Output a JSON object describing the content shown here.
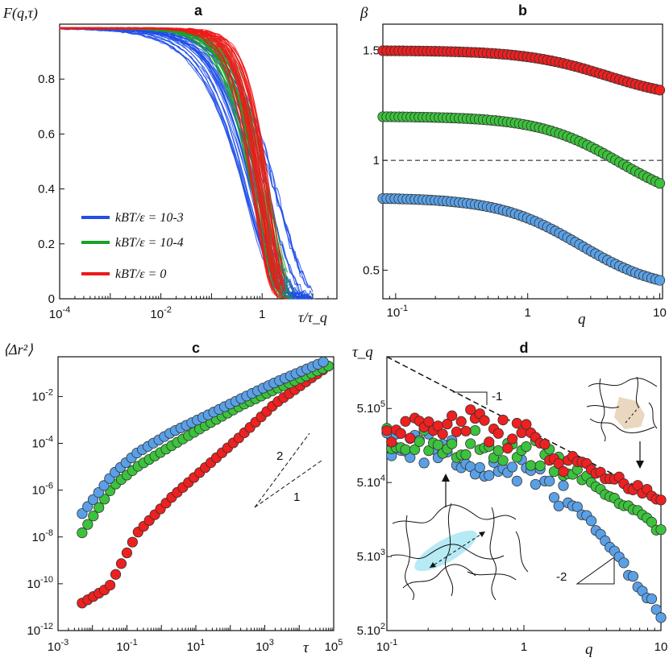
{
  "colors": {
    "blue": "#1f4fe8",
    "green": "#1aa12a",
    "red": "#ee1a1a",
    "blue_marker": "#5aa0e6",
    "green_marker": "#3cc23c",
    "red_marker": "#ee2020",
    "cell_blue": "#aee8f4",
    "cell_tan": "#ead7bf"
  },
  "chart_data": [
    {
      "panel": "a",
      "type": "line",
      "title": "a",
      "ylabel": "F(q,τ)",
      "xlabel": "τ/τ_q",
      "xscale": "log",
      "xlim": [
        0.0001,
        30
      ],
      "ylim": [
        0,
        1
      ],
      "x_tick_labels": [
        "10-4",
        "10-2",
        "1"
      ],
      "y_tick_labels": [
        "0",
        "0.2",
        "0.4",
        "0.6",
        "0.8"
      ],
      "legend_placement": "lower-left",
      "legend": [
        "kBT/ε = 10-3",
        "kBT/ε = 10-4",
        "kBT/ε = 0"
      ],
      "series": [
        {
          "name": "kBT/ε = 10-3",
          "model": "stretched exponential bundle",
          "beta": 0.83,
          "curves": 30,
          "x_end": 10
        },
        {
          "name": "kBT/ε = 10-4",
          "model": "stretched exponential bundle",
          "beta": 1.2,
          "curves": 30,
          "x_end": 4
        },
        {
          "name": "kBT/ε = 0",
          "model": "stretched exponential bundle",
          "beta": 1.5,
          "curves": 30,
          "x_end": 3
        }
      ]
    },
    {
      "panel": "b",
      "type": "scatter",
      "title": "b",
      "ylabel": "β",
      "xlabel": "q",
      "xscale": "log",
      "xlim": [
        0.08,
        10.5
      ],
      "ylim": [
        0.37,
        1.62
      ],
      "x_tick_labels": [
        "10-1",
        "1",
        "10"
      ],
      "y_tick_labels": [
        "0.5",
        "1",
        "1.5"
      ],
      "reference_line": {
        "y": 1,
        "style": "dashed"
      },
      "series": [
        {
          "name": "kBT/ε = 0",
          "plateau": 1.5,
          "low": 1.27,
          "midpoint_q": 4.0
        },
        {
          "name": "kBT/ε = 10-4",
          "plateau": 1.2,
          "low": 0.78,
          "midpoint_q": 5.0
        },
        {
          "name": "kBT/ε = 10-3",
          "plateau": 0.83,
          "low": 0.4,
          "midpoint_q": 2.5
        }
      ]
    },
    {
      "panel": "c",
      "type": "scatter",
      "title": "c",
      "ylabel": "⟨Δr²⟩",
      "xlabel": "τ",
      "xscale": "log",
      "yscale": "log",
      "xlim": [
        0.001,
        100000
      ],
      "ylim": [
        1e-12,
        0.5
      ],
      "x_tick_labels": [
        "10-3",
        "10-1",
        "101",
        "103",
        "105"
      ],
      "y_tick_labels": [
        "10-12",
        "10-10",
        "10-8",
        "10-6",
        "10-4",
        "10-2"
      ],
      "slope_labels": [
        "2",
        "1"
      ],
      "series": [
        {
          "name": "kBT/ε = 10-3",
          "x": [
            0.005,
            0.04,
            0.2,
            2,
            20,
            200,
            2000,
            50000
          ],
          "y": [
            1e-07,
            5e-06,
            4e-05,
            0.0003,
            0.0015,
            0.008,
            0.04,
            0.3
          ]
        },
        {
          "name": "kBT/ε = 10-4",
          "x": [
            0.005,
            0.04,
            0.2,
            2,
            20,
            200,
            2000,
            70000
          ],
          "y": [
            1.5e-08,
            1.5e-06,
            1e-05,
            8e-05,
            0.0006,
            0.004,
            0.02,
            0.2
          ]
        },
        {
          "name": "kBT/ε = 0",
          "x": [
            0.005,
            0.03,
            0.2,
            2,
            20,
            200,
            2000,
            70000
          ],
          "y": [
            1.5e-11,
            7e-11,
            1.5e-08,
            5e-07,
            1e-05,
            0.0002,
            0.005,
            0.2
          ]
        }
      ]
    },
    {
      "panel": "d",
      "type": "scatter",
      "title": "d",
      "ylabel": "τ_q",
      "xlabel": "q",
      "xscale": "log",
      "yscale": "log",
      "xlim": [
        0.1,
        10
      ],
      "ylim": [
        500,
        2500000
      ],
      "x_tick_labels": [
        "10-1",
        "1",
        "10"
      ],
      "y_tick_labels": [
        "5.102",
        "5.103",
        "5.104",
        "5.105"
      ],
      "slope_labels": [
        "-1",
        "-2"
      ],
      "reference_line": {
        "slope": -1,
        "style": "dashed"
      },
      "series": [
        {
          "name": "kBT/ε = 0",
          "x": [
            0.1,
            0.3,
            1,
            3,
            10
          ],
          "y": [
            260000,
            400000,
            200000,
            80000,
            30000
          ]
        },
        {
          "name": "kBT/ε = 10-4",
          "x": [
            0.1,
            0.3,
            1,
            3,
            10
          ],
          "y": [
            240000,
            180000,
            140000,
            55000,
            11000
          ]
        },
        {
          "name": "kBT/ε = 10-3",
          "x": [
            0.1,
            0.3,
            1,
            3,
            10
          ],
          "y": [
            180000,
            120000,
            70000,
            17000,
            800
          ]
        }
      ]
    }
  ]
}
